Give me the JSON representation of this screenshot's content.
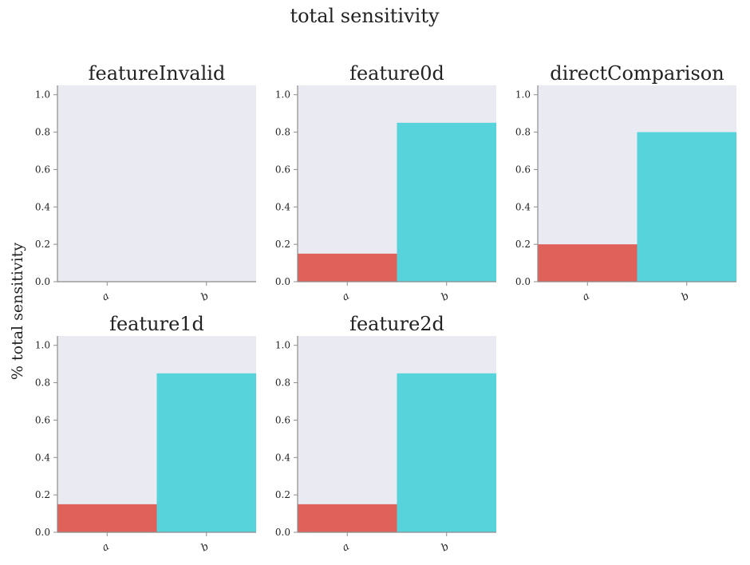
{
  "figure": {
    "title": "total sensitivity",
    "ylabel": "% total sensitivity"
  },
  "chart_data": [
    {
      "type": "bar",
      "title": "featureInvalid",
      "categories": [
        "a",
        "b"
      ],
      "values": [
        0.0,
        0.0
      ],
      "colors": [
        "#e0605a",
        "#57d3db"
      ],
      "ylim": [
        0,
        1.05
      ],
      "yticks": [
        "0.0",
        "0.2",
        "0.4",
        "0.6",
        "0.8",
        "1.0"
      ],
      "grid": false
    },
    {
      "type": "bar",
      "title": "feature0d",
      "categories": [
        "a",
        "b"
      ],
      "values": [
        0.15,
        0.85
      ],
      "colors": [
        "#e0605a",
        "#57d3db"
      ],
      "ylim": [
        0,
        1.05
      ],
      "yticks": [
        "0.0",
        "0.2",
        "0.4",
        "0.6",
        "0.8",
        "1.0"
      ],
      "grid": false
    },
    {
      "type": "bar",
      "title": "directComparison",
      "categories": [
        "a",
        "b"
      ],
      "values": [
        0.2,
        0.8
      ],
      "colors": [
        "#e0605a",
        "#57d3db"
      ],
      "ylim": [
        0,
        1.05
      ],
      "yticks": [
        "0.0",
        "0.2",
        "0.4",
        "0.6",
        "0.8",
        "1.0"
      ],
      "grid": false
    },
    {
      "type": "bar",
      "title": "feature1d",
      "categories": [
        "a",
        "b"
      ],
      "values": [
        0.15,
        0.85
      ],
      "colors": [
        "#e0605a",
        "#57d3db"
      ],
      "ylim": [
        0,
        1.05
      ],
      "yticks": [
        "0.0",
        "0.2",
        "0.4",
        "0.6",
        "0.8",
        "1.0"
      ],
      "grid": false
    },
    {
      "type": "bar",
      "title": "feature2d",
      "categories": [
        "a",
        "b"
      ],
      "values": [
        0.15,
        0.85
      ],
      "colors": [
        "#e0605a",
        "#57d3db"
      ],
      "ylim": [
        0,
        1.05
      ],
      "yticks": [
        "0.0",
        "0.2",
        "0.4",
        "0.6",
        "0.8",
        "1.0"
      ],
      "grid": false
    }
  ],
  "style": {
    "axes_background": "#eaeaf2",
    "spine_color": "#8c8c8c"
  }
}
